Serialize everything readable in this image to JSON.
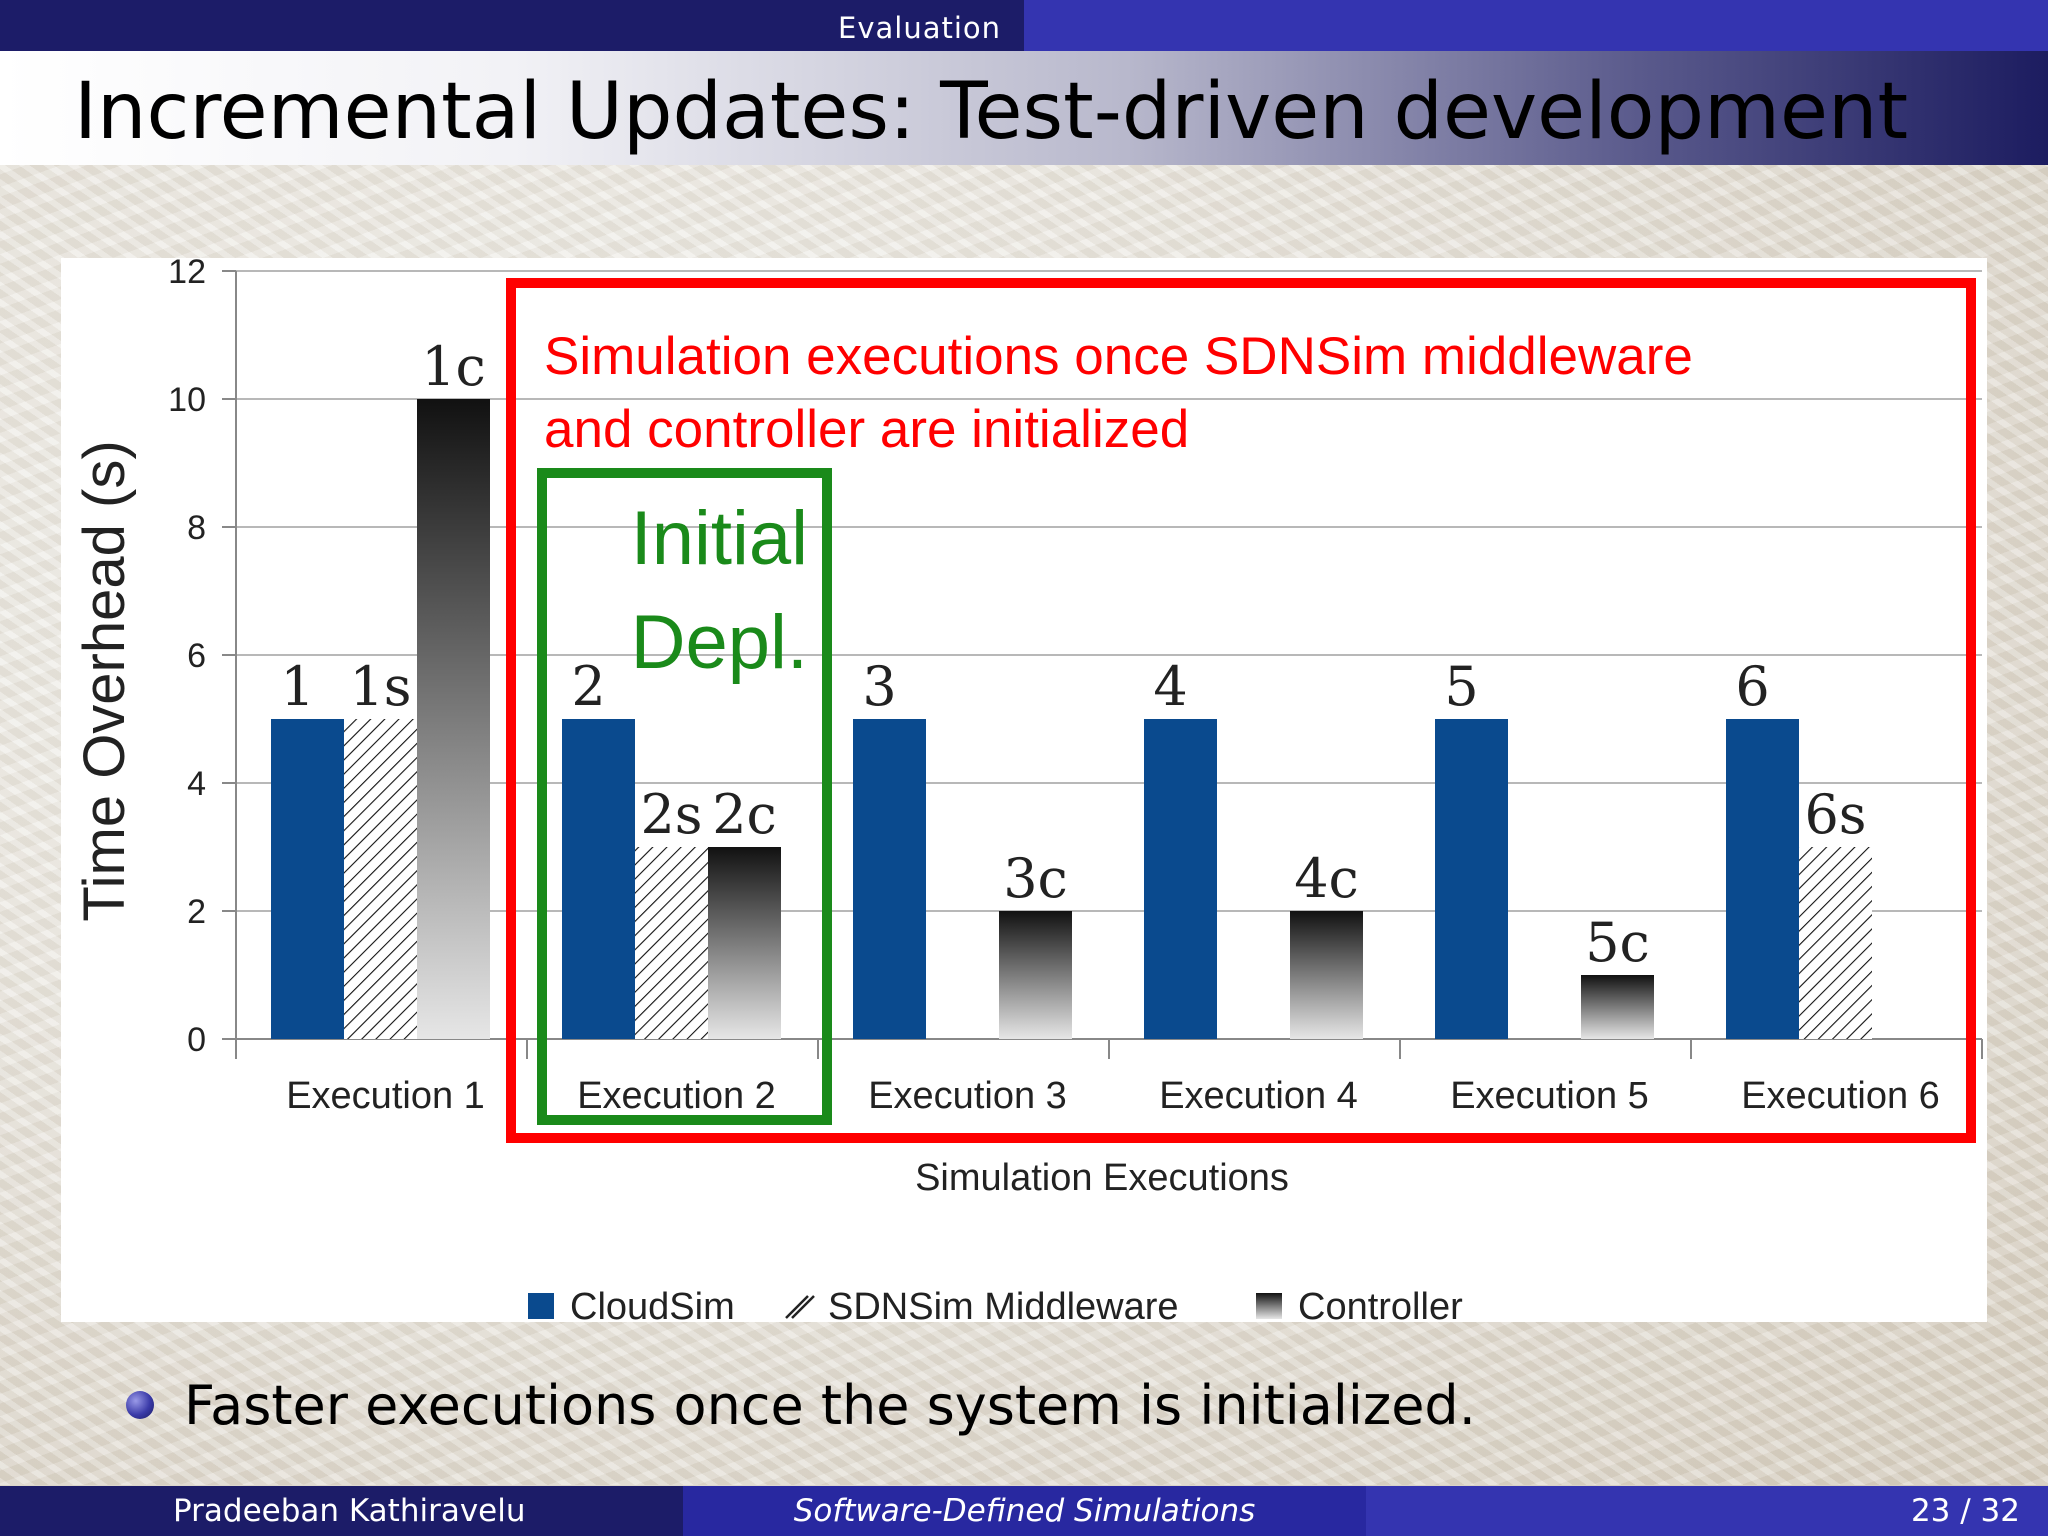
{
  "header": {
    "section": "Evaluation"
  },
  "slide": {
    "title": "Incremental Updates:  Test-driven development"
  },
  "bullets": [
    "Faster executions once the system is initialized."
  ],
  "footer": {
    "author": "Pradeeban Kathiravelu",
    "talk": "Software-Defined Simulations",
    "page": "23 / 32"
  },
  "annotations": {
    "red_box_text": [
      "Simulation executions once SDNSim middleware",
      " and controller are initialized"
    ],
    "green_box_text": [
      "Initial",
      "Depl."
    ],
    "red_color": "#ff0000",
    "green_color": "#1a8a1a"
  },
  "chart_data": {
    "type": "bar",
    "xlabel": "Simulation Executions",
    "ylabel": "Time Overhead (s)",
    "ylim": [
      0,
      12
    ],
    "yticks": [
      0,
      2,
      4,
      6,
      8,
      10,
      12
    ],
    "grid": true,
    "legend_position": "bottom",
    "categories": [
      "Execution 1",
      "Execution 2",
      "Execution 3",
      "Execution 4",
      "Execution 5",
      "Execution 6"
    ],
    "series": [
      {
        "name": "CloudSim",
        "style": "solid",
        "color": "#0a4a8e",
        "values": [
          5,
          5,
          5,
          5,
          5,
          5
        ],
        "labels": [
          "1",
          "2",
          "3",
          "4",
          "5",
          "6"
        ]
      },
      {
        "name": "SDNSim Middleware",
        "style": "hatched",
        "color": "#000000",
        "values": [
          5,
          3,
          0,
          0,
          0,
          3
        ],
        "labels": [
          "1s",
          "2s",
          "",
          "",
          "",
          "6s"
        ]
      },
      {
        "name": "Controller",
        "style": "gradient",
        "color": "#111111",
        "values": [
          10,
          3,
          2,
          2,
          1,
          0
        ],
        "labels": [
          "1c",
          "2c",
          "3c",
          "4c",
          "5c",
          ""
        ]
      }
    ]
  }
}
